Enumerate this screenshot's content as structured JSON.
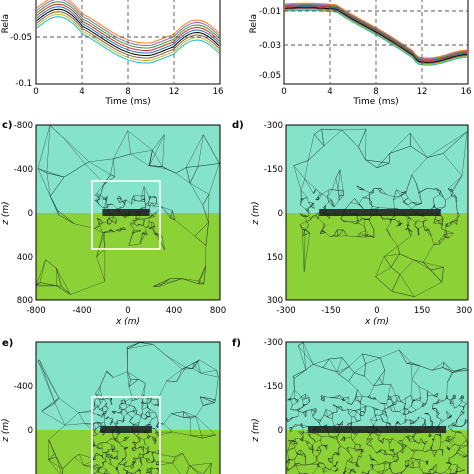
{
  "colors": {
    "upper_half": "#84e3c8",
    "lower_half": "#8cd136",
    "mesh": "#1d2a2a",
    "dash": "#555555",
    "frame": "#000000",
    "box": "#ffffff"
  },
  "top_left": {
    "ylabel_fragment": "Rela",
    "yticks": [
      "-0.05",
      "-0.1"
    ],
    "xticks": [
      "0",
      "4",
      "8",
      "12",
      "16"
    ],
    "xlabel": "Time (ms)"
  },
  "top_right": {
    "ylabel_fragment": "Rela",
    "yticks": [
      "-0.01",
      "-0.03",
      "-0.05"
    ],
    "xticks": [
      "0",
      "4",
      "8",
      "12",
      "16"
    ],
    "xlabel": "Time (ms)"
  },
  "panels": [
    {
      "label": "c)",
      "yticks": [
        "-800",
        "-400",
        "0",
        "400",
        "800"
      ],
      "xticks": [
        "-800",
        "-400",
        "0",
        "400",
        "800"
      ],
      "ylabel": "z (m)",
      "xlabel": "x (m)"
    },
    {
      "label": "d)",
      "yticks": [
        "-300",
        "-150",
        "0",
        "150",
        "300"
      ],
      "xticks": [
        "-300",
        "-150",
        "0",
        "150",
        "300"
      ],
      "ylabel": "z (m)",
      "xlabel": "x (m)"
    },
    {
      "label": "e)",
      "yticks": [
        "-400",
        "0"
      ],
      "xticks": [],
      "ylabel": "z (m)",
      "xlabel": ""
    },
    {
      "label": "f)",
      "yticks": [
        "-300",
        "-150",
        "0"
      ],
      "xticks": [],
      "ylabel": "z (m)",
      "xlabel": ""
    }
  ]
}
